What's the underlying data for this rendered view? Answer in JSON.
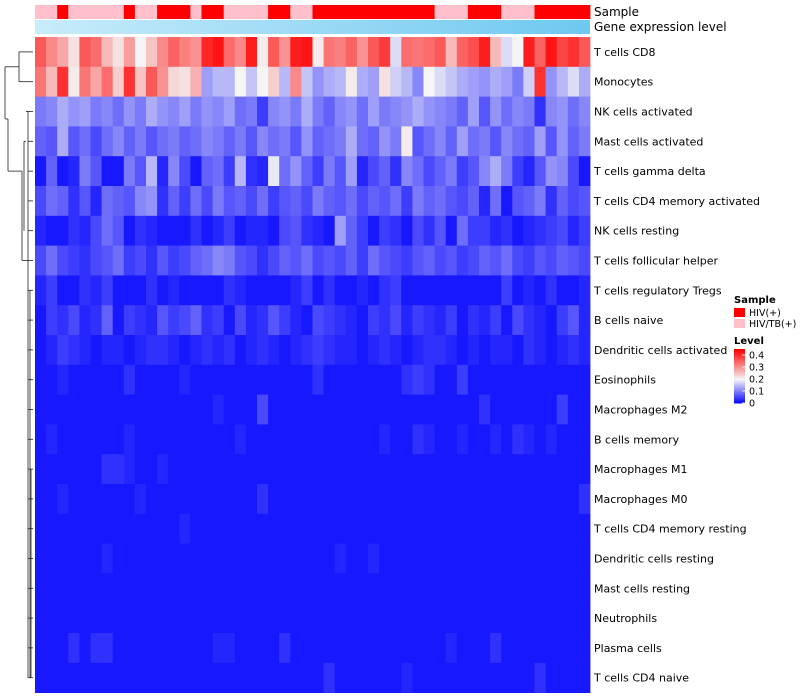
{
  "chart_data": {
    "type": "heatmap",
    "title": "",
    "annotation_tracks": [
      {
        "name": "Sample",
        "label": "Sample"
      },
      {
        "name": "Gene expression level",
        "label": "Gene expression level"
      }
    ],
    "sample_groups": [
      "HIV/TB(+)",
      "HIV/TB(+)",
      "HIV(+)",
      "HIV/TB(+)",
      "HIV/TB(+)",
      "HIV/TB(+)",
      "HIV/TB(+)",
      "HIV/TB(+)",
      "HIV(+)",
      "HIV/TB(+)",
      "HIV/TB(+)",
      "HIV(+)",
      "HIV(+)",
      "HIV(+)",
      "HIV/TB(+)",
      "HIV(+)",
      "HIV(+)",
      "HIV/TB(+)",
      "HIV/TB(+)",
      "HIV/TB(+)",
      "HIV/TB(+)",
      "HIV(+)",
      "HIV(+)",
      "HIV/TB(+)",
      "HIV/TB(+)",
      "HIV(+)",
      "HIV(+)",
      "HIV(+)",
      "HIV(+)",
      "HIV(+)",
      "HIV(+)",
      "HIV(+)",
      "HIV(+)",
      "HIV(+)",
      "HIV(+)",
      "HIV(+)",
      "HIV/TB(+)",
      "HIV/TB(+)",
      "HIV/TB(+)",
      "HIV(+)",
      "HIV(+)",
      "HIV(+)",
      "HIV/TB(+)",
      "HIV/TB(+)",
      "HIV/TB(+)",
      "HIV(+)",
      "HIV(+)",
      "HIV(+)",
      "HIV(+)",
      "HIV(+)"
    ],
    "rows": [
      "T cells CD8",
      "Monocytes",
      "NK cells activated",
      "Mast cells activated",
      "T cells gamma delta",
      "T cells CD4 memory activated",
      "NK cells resting",
      "T cells follicular helper",
      "T cells regulatory  Tregs",
      "B cells naive",
      "Dendritic cells activated",
      "Eosinophils",
      "Macrophages M2",
      "B cells memory",
      "Macrophages M1",
      "Macrophages M0",
      "T cells CD4 memory resting",
      "Dendritic cells resting",
      "Mast cells resting",
      "Neutrophils",
      "Plasma cells",
      "T cells CD4 naive"
    ],
    "value_range": [
      0,
      0.45
    ],
    "values": [
      [
        0.36,
        0.31,
        0.28,
        0.22,
        0.36,
        0.34,
        0.26,
        0.22,
        0.29,
        0.2,
        0.25,
        0.31,
        0.35,
        0.32,
        0.3,
        0.41,
        0.43,
        0.34,
        0.31,
        0.42,
        0.21,
        0.36,
        0.3,
        0.42,
        0.43,
        0.21,
        0.33,
        0.32,
        0.35,
        0.3,
        0.36,
        0.39,
        0.18,
        0.34,
        0.33,
        0.34,
        0.36,
        0.26,
        0.35,
        0.37,
        0.42,
        0.26,
        0.18,
        0.2,
        0.42,
        0.35,
        0.43,
        0.38,
        0.4,
        0.36
      ],
      [
        0.33,
        0.26,
        0.4,
        0.21,
        0.33,
        0.28,
        0.34,
        0.24,
        0.4,
        0.25,
        0.36,
        0.3,
        0.23,
        0.22,
        0.27,
        0.13,
        0.15,
        0.15,
        0.2,
        0.16,
        0.2,
        0.24,
        0.15,
        0.31,
        0.16,
        0.12,
        0.14,
        0.15,
        0.21,
        0.14,
        0.13,
        0.22,
        0.17,
        0.15,
        0.11,
        0.2,
        0.18,
        0.16,
        0.14,
        0.13,
        0.12,
        0.14,
        0.13,
        0.1,
        0.17,
        0.4,
        0.12,
        0.15,
        0.18,
        0.14
      ],
      [
        0.1,
        0.11,
        0.14,
        0.12,
        0.13,
        0.1,
        0.11,
        0.09,
        0.12,
        0.1,
        0.14,
        0.12,
        0.11,
        0.13,
        0.1,
        0.12,
        0.11,
        0.13,
        0.09,
        0.1,
        0.05,
        0.11,
        0.12,
        0.1,
        0.14,
        0.1,
        0.08,
        0.11,
        0.12,
        0.09,
        0.13,
        0.1,
        0.11,
        0.12,
        0.14,
        0.12,
        0.11,
        0.1,
        0.08,
        0.13,
        0.07,
        0.12,
        0.09,
        0.11,
        0.1,
        0.04,
        0.11,
        0.12,
        0.09,
        0.11
      ],
      [
        0.08,
        0.07,
        0.14,
        0.07,
        0.09,
        0.06,
        0.09,
        0.11,
        0.08,
        0.1,
        0.07,
        0.09,
        0.1,
        0.08,
        0.09,
        0.11,
        0.1,
        0.08,
        0.1,
        0.07,
        0.11,
        0.09,
        0.1,
        0.07,
        0.12,
        0.08,
        0.09,
        0.1,
        0.14,
        0.09,
        0.08,
        0.12,
        0.1,
        0.21,
        0.07,
        0.09,
        0.11,
        0.08,
        0.13,
        0.09,
        0.1,
        0.07,
        0.11,
        0.09,
        0.08,
        0.13,
        0.07,
        0.12,
        0.08,
        0.1
      ],
      [
        0.02,
        0.08,
        0.02,
        0.03,
        0.1,
        0.07,
        0.02,
        0.02,
        0.1,
        0.07,
        0.15,
        0.03,
        0.11,
        0.06,
        0.02,
        0.08,
        0.09,
        0.05,
        0.15,
        0.04,
        0.03,
        0.19,
        0.09,
        0.12,
        0.08,
        0.05,
        0.1,
        0.07,
        0.13,
        0.03,
        0.06,
        0.08,
        0.04,
        0.11,
        0.09,
        0.06,
        0.08,
        0.1,
        0.05,
        0.07,
        0.11,
        0.14,
        0.1,
        0.05,
        0.03,
        0.07,
        0.12,
        0.11,
        0.06,
        0.02
      ],
      [
        0.06,
        0.09,
        0.08,
        0.04,
        0.07,
        0.03,
        0.09,
        0.08,
        0.07,
        0.11,
        0.12,
        0.04,
        0.08,
        0.05,
        0.09,
        0.06,
        0.1,
        0.07,
        0.08,
        0.06,
        0.09,
        0.05,
        0.07,
        0.08,
        0.06,
        0.1,
        0.08,
        0.07,
        0.09,
        0.06,
        0.08,
        0.07,
        0.09,
        0.05,
        0.1,
        0.08,
        0.09,
        0.07,
        0.06,
        0.08,
        0.03,
        0.09,
        0.02,
        0.07,
        0.08,
        0.1,
        0.04,
        0.08,
        0.06,
        0.07
      ],
      [
        0.03,
        0.02,
        0.02,
        0.04,
        0.03,
        0.06,
        0.09,
        0.07,
        0.02,
        0.04,
        0.03,
        0.02,
        0.02,
        0.02,
        0.04,
        0.02,
        0.03,
        0.05,
        0.02,
        0.03,
        0.03,
        0.02,
        0.06,
        0.07,
        0.04,
        0.03,
        0.02,
        0.13,
        0.08,
        0.05,
        0.02,
        0.05,
        0.04,
        0.02,
        0.06,
        0.04,
        0.07,
        0.02,
        0.09,
        0.05,
        0.05,
        0.03,
        0.04,
        0.02,
        0.03,
        0.04,
        0.05,
        0.06,
        0.03,
        0.05
      ],
      [
        0.06,
        0.09,
        0.06,
        0.05,
        0.04,
        0.06,
        0.07,
        0.09,
        0.05,
        0.06,
        0.04,
        0.07,
        0.05,
        0.06,
        0.08,
        0.09,
        0.11,
        0.1,
        0.07,
        0.06,
        0.04,
        0.06,
        0.08,
        0.07,
        0.09,
        0.06,
        0.07,
        0.06,
        0.08,
        0.05,
        0.09,
        0.07,
        0.06,
        0.05,
        0.07,
        0.08,
        0.06,
        0.07,
        0.05,
        0.06,
        0.08,
        0.07,
        0.09,
        0.06,
        0.05,
        0.07,
        0.06,
        0.08,
        0.07,
        0.06
      ],
      [
        0.03,
        0.05,
        0.02,
        0.02,
        0.04,
        0.03,
        0.05,
        0.02,
        0.02,
        0.02,
        0.04,
        0.02,
        0.03,
        0.02,
        0.02,
        0.02,
        0.02,
        0.04,
        0.03,
        0.02,
        0.02,
        0.02,
        0.02,
        0.03,
        0.05,
        0.02,
        0.04,
        0.02,
        0.02,
        0.03,
        0.02,
        0.04,
        0.05,
        0.02,
        0.02,
        0.02,
        0.02,
        0.02,
        0.02,
        0.02,
        0.02,
        0.02,
        0.05,
        0.02,
        0.03,
        0.02,
        0.04,
        0.02,
        0.02,
        0.03
      ],
      [
        0.02,
        0.05,
        0.04,
        0.06,
        0.03,
        0.04,
        0.08,
        0.02,
        0.05,
        0.04,
        0.03,
        0.07,
        0.05,
        0.06,
        0.08,
        0.04,
        0.05,
        0.02,
        0.06,
        0.03,
        0.04,
        0.07,
        0.05,
        0.03,
        0.02,
        0.06,
        0.05,
        0.04,
        0.03,
        0.02,
        0.05,
        0.04,
        0.06,
        0.03,
        0.05,
        0.04,
        0.03,
        0.05,
        0.02,
        0.04,
        0.03,
        0.05,
        0.02,
        0.06,
        0.04,
        0.03,
        0.02,
        0.05,
        0.07,
        0.03
      ],
      [
        0.02,
        0.03,
        0.05,
        0.04,
        0.03,
        0.02,
        0.03,
        0.03,
        0.02,
        0.03,
        0.04,
        0.04,
        0.03,
        0.02,
        0.03,
        0.04,
        0.03,
        0.04,
        0.02,
        0.03,
        0.04,
        0.03,
        0.02,
        0.03,
        0.04,
        0.05,
        0.04,
        0.03,
        0.03,
        0.02,
        0.03,
        0.04,
        0.03,
        0.02,
        0.03,
        0.04,
        0.04,
        0.03,
        0.02,
        0.03,
        0.02,
        0.03,
        0.03,
        0.02,
        0.04,
        0.03,
        0.02,
        0.03,
        0.04,
        0.03
      ],
      [
        0.02,
        0.02,
        0.03,
        0.02,
        0.02,
        0.02,
        0.02,
        0.02,
        0.04,
        0.02,
        0.02,
        0.02,
        0.02,
        0.03,
        0.02,
        0.02,
        0.02,
        0.02,
        0.02,
        0.02,
        0.02,
        0.02,
        0.02,
        0.02,
        0.02,
        0.04,
        0.02,
        0.02,
        0.02,
        0.02,
        0.02,
        0.02,
        0.02,
        0.04,
        0.05,
        0.04,
        0.02,
        0.02,
        0.05,
        0.02,
        0.02,
        0.02,
        0.02,
        0.02,
        0.02,
        0.02,
        0.02,
        0.02,
        0.02,
        0.02
      ],
      [
        0.02,
        0.02,
        0.02,
        0.02,
        0.02,
        0.02,
        0.02,
        0.02,
        0.02,
        0.02,
        0.02,
        0.02,
        0.02,
        0.02,
        0.02,
        0.02,
        0.03,
        0.02,
        0.02,
        0.02,
        0.06,
        0.02,
        0.02,
        0.02,
        0.02,
        0.02,
        0.02,
        0.02,
        0.02,
        0.02,
        0.02,
        0.02,
        0.02,
        0.02,
        0.02,
        0.02,
        0.02,
        0.02,
        0.02,
        0.02,
        0.04,
        0.02,
        0.02,
        0.02,
        0.02,
        0.02,
        0.02,
        0.05,
        0.02,
        0.02
      ],
      [
        0.02,
        0.03,
        0.02,
        0.02,
        0.02,
        0.02,
        0.02,
        0.02,
        0.03,
        0.02,
        0.02,
        0.02,
        0.02,
        0.02,
        0.02,
        0.02,
        0.02,
        0.02,
        0.03,
        0.02,
        0.02,
        0.02,
        0.02,
        0.02,
        0.02,
        0.02,
        0.02,
        0.02,
        0.02,
        0.02,
        0.02,
        0.03,
        0.02,
        0.02,
        0.04,
        0.03,
        0.02,
        0.02,
        0.03,
        0.02,
        0.02,
        0.03,
        0.02,
        0.04,
        0.03,
        0.02,
        0.03,
        0.02,
        0.02,
        0.02
      ],
      [
        0.02,
        0.02,
        0.02,
        0.02,
        0.02,
        0.02,
        0.04,
        0.04,
        0.03,
        0.02,
        0.02,
        0.03,
        0.02,
        0.02,
        0.02,
        0.02,
        0.02,
        0.02,
        0.02,
        0.02,
        0.02,
        0.02,
        0.02,
        0.02,
        0.02,
        0.02,
        0.02,
        0.02,
        0.02,
        0.02,
        0.02,
        0.02,
        0.02,
        0.02,
        0.02,
        0.02,
        0.02,
        0.02,
        0.02,
        0.02,
        0.02,
        0.02,
        0.02,
        0.02,
        0.02,
        0.02,
        0.02,
        0.02,
        0.02,
        0.02
      ],
      [
        0.02,
        0.02,
        0.03,
        0.02,
        0.02,
        0.02,
        0.02,
        0.02,
        0.02,
        0.03,
        0.02,
        0.02,
        0.02,
        0.02,
        0.02,
        0.02,
        0.02,
        0.02,
        0.02,
        0.02,
        0.04,
        0.02,
        0.02,
        0.02,
        0.02,
        0.02,
        0.02,
        0.02,
        0.02,
        0.02,
        0.02,
        0.02,
        0.02,
        0.02,
        0.02,
        0.02,
        0.02,
        0.02,
        0.02,
        0.02,
        0.02,
        0.02,
        0.02,
        0.02,
        0.02,
        0.02,
        0.02,
        0.02,
        0.02,
        0.04
      ],
      [
        0.02,
        0.02,
        0.02,
        0.02,
        0.02,
        0.02,
        0.02,
        0.02,
        0.02,
        0.02,
        0.02,
        0.02,
        0.02,
        0.03,
        0.02,
        0.02,
        0.02,
        0.02,
        0.02,
        0.02,
        0.02,
        0.02,
        0.02,
        0.02,
        0.02,
        0.02,
        0.02,
        0.02,
        0.02,
        0.02,
        0.02,
        0.02,
        0.02,
        0.02,
        0.02,
        0.02,
        0.02,
        0.02,
        0.02,
        0.02,
        0.02,
        0.02,
        0.02,
        0.02,
        0.02,
        0.02,
        0.02,
        0.02,
        0.02,
        0.02
      ],
      [
        0.02,
        0.02,
        0.02,
        0.02,
        0.02,
        0.02,
        0.03,
        0.02,
        0.02,
        0.02,
        0.02,
        0.02,
        0.02,
        0.02,
        0.02,
        0.02,
        0.02,
        0.02,
        0.02,
        0.02,
        0.02,
        0.02,
        0.02,
        0.02,
        0.02,
        0.02,
        0.02,
        0.03,
        0.02,
        0.02,
        0.03,
        0.02,
        0.02,
        0.02,
        0.02,
        0.02,
        0.02,
        0.02,
        0.02,
        0.02,
        0.02,
        0.02,
        0.02,
        0.02,
        0.02,
        0.02,
        0.02,
        0.02,
        0.02,
        0.02
      ],
      [
        0.02,
        0.02,
        0.02,
        0.02,
        0.02,
        0.02,
        0.02,
        0.02,
        0.02,
        0.02,
        0.02,
        0.02,
        0.02,
        0.02,
        0.02,
        0.02,
        0.02,
        0.02,
        0.02,
        0.02,
        0.02,
        0.02,
        0.02,
        0.02,
        0.02,
        0.02,
        0.02,
        0.02,
        0.02,
        0.02,
        0.02,
        0.02,
        0.02,
        0.02,
        0.02,
        0.02,
        0.02,
        0.02,
        0.02,
        0.02,
        0.02,
        0.02,
        0.02,
        0.02,
        0.02,
        0.02,
        0.02,
        0.02,
        0.02,
        0.02
      ],
      [
        0.02,
        0.02,
        0.02,
        0.02,
        0.02,
        0.02,
        0.02,
        0.02,
        0.02,
        0.02,
        0.02,
        0.02,
        0.02,
        0.02,
        0.02,
        0.02,
        0.02,
        0.02,
        0.02,
        0.02,
        0.02,
        0.02,
        0.02,
        0.02,
        0.02,
        0.02,
        0.02,
        0.02,
        0.02,
        0.02,
        0.02,
        0.02,
        0.02,
        0.02,
        0.02,
        0.02,
        0.02,
        0.02,
        0.02,
        0.02,
        0.02,
        0.02,
        0.02,
        0.02,
        0.02,
        0.02,
        0.02,
        0.02,
        0.02,
        0.02
      ],
      [
        0.02,
        0.02,
        0.02,
        0.04,
        0.02,
        0.04,
        0.04,
        0.02,
        0.02,
        0.02,
        0.02,
        0.02,
        0.02,
        0.02,
        0.02,
        0.02,
        0.03,
        0.03,
        0.02,
        0.02,
        0.02,
        0.02,
        0.04,
        0.02,
        0.02,
        0.02,
        0.02,
        0.02,
        0.02,
        0.02,
        0.02,
        0.02,
        0.02,
        0.02,
        0.02,
        0.02,
        0.02,
        0.03,
        0.02,
        0.02,
        0.02,
        0.04,
        0.02,
        0.02,
        0.02,
        0.02,
        0.02,
        0.02,
        0.02,
        0.02
      ],
      [
        0.02,
        0.02,
        0.02,
        0.02,
        0.02,
        0.02,
        0.02,
        0.02,
        0.02,
        0.02,
        0.02,
        0.02,
        0.02,
        0.02,
        0.02,
        0.02,
        0.02,
        0.02,
        0.02,
        0.02,
        0.02,
        0.02,
        0.02,
        0.02,
        0.02,
        0.02,
        0.04,
        0.02,
        0.02,
        0.02,
        0.02,
        0.02,
        0.02,
        0.03,
        0.02,
        0.02,
        0.02,
        0.02,
        0.02,
        0.02,
        0.02,
        0.02,
        0.02,
        0.02,
        0.02,
        0.04,
        0.02,
        0.02,
        0.02,
        0.02
      ]
    ],
    "legend": {
      "sample_title": "Sample",
      "sample_entries": [
        {
          "label": "HIV(+)",
          "color": "#ff0000"
        },
        {
          "label": "HIV/TB(+)",
          "color": "#ffc0cb"
        }
      ],
      "level_title": "Level",
      "level_ticks": [
        {
          "label": "0.4",
          "value": 0.4
        },
        {
          "label": "0.3",
          "value": 0.3
        },
        {
          "label": "0.2",
          "value": 0.2
        },
        {
          "label": "0.1",
          "value": 0.1
        },
        {
          "label": "0",
          "value": 0
        }
      ]
    },
    "colors": {
      "low": "#0000ff",
      "mid": "#f5f5f5",
      "high": "#ff0000",
      "mid_value": 0.2,
      "expression_track": "#6ec8f0",
      "expression_track_light": "#c8ecfa"
    }
  }
}
